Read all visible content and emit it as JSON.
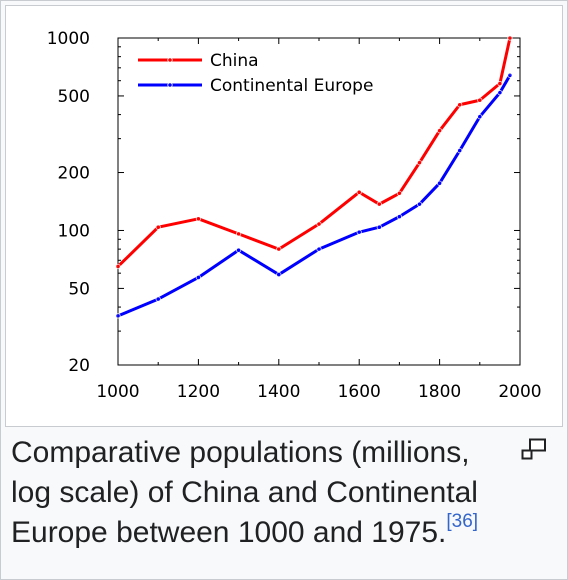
{
  "caption": {
    "text": "Comparative populations (millions, log scale) of China and Continental Europe between 1000 and 1975.",
    "reference": "[36]"
  },
  "icons": {
    "enlarge": "magnify-clip-icon"
  },
  "chart_data": {
    "type": "line",
    "title": "",
    "xlabel": "",
    "ylabel": "",
    "xlim": [
      1000,
      2000
    ],
    "ylim": [
      20,
      1000
    ],
    "yscale": "log",
    "xticks": [
      "1000",
      "1200",
      "1400",
      "1600",
      "1800",
      "2000"
    ],
    "yticks": [
      "20",
      "50",
      "100",
      "200",
      "500",
      "1000"
    ],
    "legend": "top-left",
    "grid": false,
    "series": [
      {
        "name": "China",
        "color": "#ff0000",
        "x": [
          1000,
          1100,
          1200,
          1300,
          1400,
          1500,
          1600,
          1650,
          1700,
          1750,
          1800,
          1850,
          1900,
          1950,
          1975
        ],
        "values": [
          65,
          104,
          115,
          96,
          80,
          108,
          158,
          137,
          156,
          225,
          330,
          450,
          475,
          580,
          1000
        ]
      },
      {
        "name": "Continental Europe",
        "color": "#0000ff",
        "x": [
          1000,
          1100,
          1200,
          1300,
          1400,
          1500,
          1600,
          1650,
          1700,
          1750,
          1800,
          1850,
          1900,
          1950,
          1975
        ],
        "values": [
          36,
          44,
          57,
          79,
          59,
          80,
          98,
          104,
          118,
          137,
          176,
          260,
          390,
          520,
          640
        ]
      }
    ]
  }
}
